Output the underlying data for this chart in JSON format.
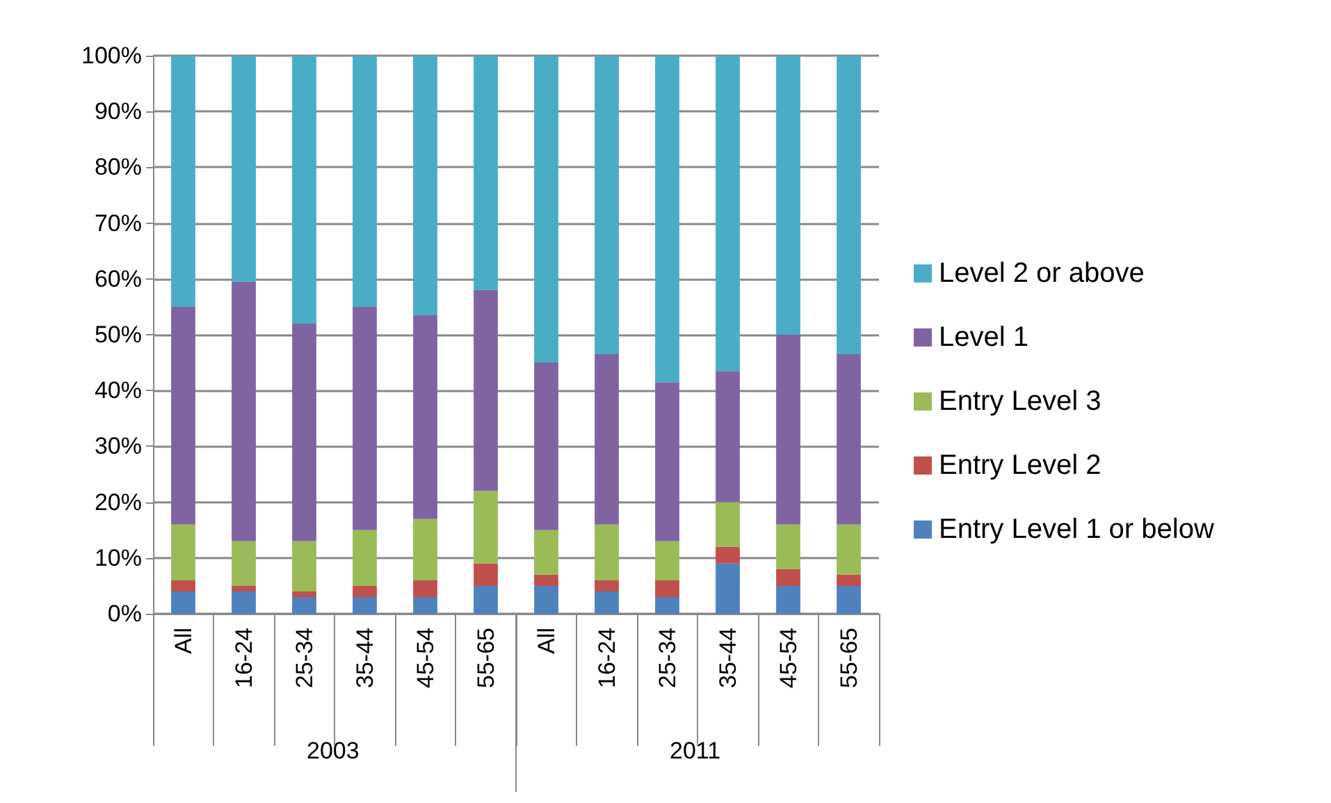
{
  "chart_data": {
    "type": "bar",
    "stacked": true,
    "categories": [
      "All",
      "16-24",
      "25-34",
      "35-44",
      "45-54",
      "55-65",
      "All",
      "16-24",
      "25-34",
      "35-44",
      "45-54",
      "55-65"
    ],
    "series": [
      {
        "name": "Entry Level 1 or below",
        "color": "#4f81bd",
        "values": [
          4,
          4,
          3,
          3,
          3,
          5,
          5,
          4,
          3,
          9,
          5,
          5
        ]
      },
      {
        "name": "Entry Level 2",
        "color": "#c0504d",
        "values": [
          2,
          1,
          1,
          2,
          3,
          4,
          2,
          2,
          3,
          3,
          3,
          2
        ]
      },
      {
        "name": "Entry Level 3",
        "color": "#9bbb59",
        "values": [
          10,
          8,
          9,
          10,
          11,
          13,
          8,
          10,
          7,
          8,
          8,
          9
        ]
      },
      {
        "name": "Level 1",
        "color": "#8064a2",
        "values": [
          39,
          46.5,
          39,
          40,
          36.5,
          36,
          30,
          30.5,
          28.5,
          23.5,
          34,
          30.5
        ]
      },
      {
        "name": "Level 2 or above",
        "color": "#4bacc6",
        "values": [
          45,
          40.5,
          48,
          45,
          46.5,
          42,
          55,
          53.5,
          58.5,
          56.5,
          50,
          53.5
        ]
      }
    ],
    "ylim": [
      0,
      100
    ],
    "yticks": [
      {
        "value": 0,
        "label": "0%"
      },
      {
        "value": 10,
        "label": "10%"
      },
      {
        "value": 20,
        "label": "20%"
      },
      {
        "value": 30,
        "label": "30%"
      },
      {
        "value": 40,
        "label": "40%"
      },
      {
        "value": 50,
        "label": "50%"
      },
      {
        "value": 60,
        "label": "60%"
      },
      {
        "value": 70,
        "label": "70%"
      },
      {
        "value": 80,
        "label": "80%"
      },
      {
        "value": 90,
        "label": "90%"
      },
      {
        "value": 100,
        "label": "100%"
      }
    ],
    "annotations": [
      "2003",
      "2011"
    ],
    "grid": "y",
    "legend": "right"
  }
}
